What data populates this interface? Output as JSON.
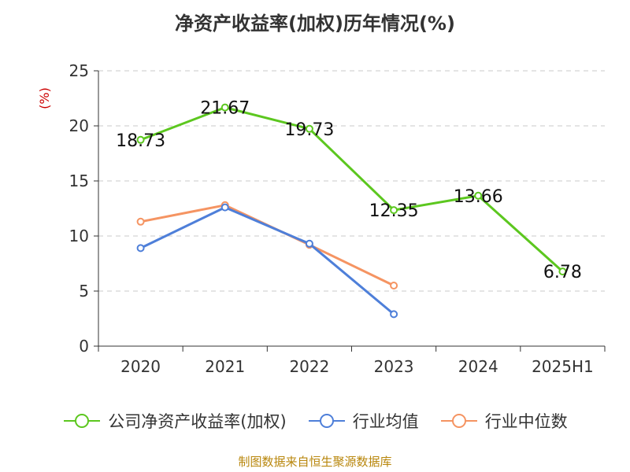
{
  "header": {
    "title": "净资产收益率(加权)历年情况(%)"
  },
  "footer": {
    "source": "制图数据来自恒生聚源数据库"
  },
  "chart_data": {
    "type": "line",
    "title": "净资产收益率(加权)历年情况(%)",
    "ylabel": "(%)",
    "xlabel": "",
    "categories": [
      "2020",
      "2021",
      "2022",
      "2023",
      "2024",
      "2025H1"
    ],
    "ylim": [
      0,
      25
    ],
    "yticks": [
      0,
      5,
      10,
      15,
      20,
      25
    ],
    "grid": true,
    "legend_position": "bottom",
    "series": [
      {
        "name": "公司净资产收益率(加权)",
        "color": "#5cc71f",
        "values": [
          18.73,
          21.67,
          19.73,
          12.35,
          13.66,
          6.78
        ],
        "labels": [
          "18.73",
          "21.67",
          "19.73",
          "12.35",
          "13.66",
          "6.78"
        ],
        "show_labels": true
      },
      {
        "name": "行业均值",
        "color": "#4e7fd9",
        "values": [
          8.9,
          12.6,
          9.3,
          2.9,
          null,
          null
        ],
        "show_labels": false
      },
      {
        "name": "行业中位数",
        "color": "#f59462",
        "values": [
          11.3,
          12.8,
          9.2,
          5.5,
          null,
          null
        ],
        "show_labels": false
      }
    ]
  }
}
